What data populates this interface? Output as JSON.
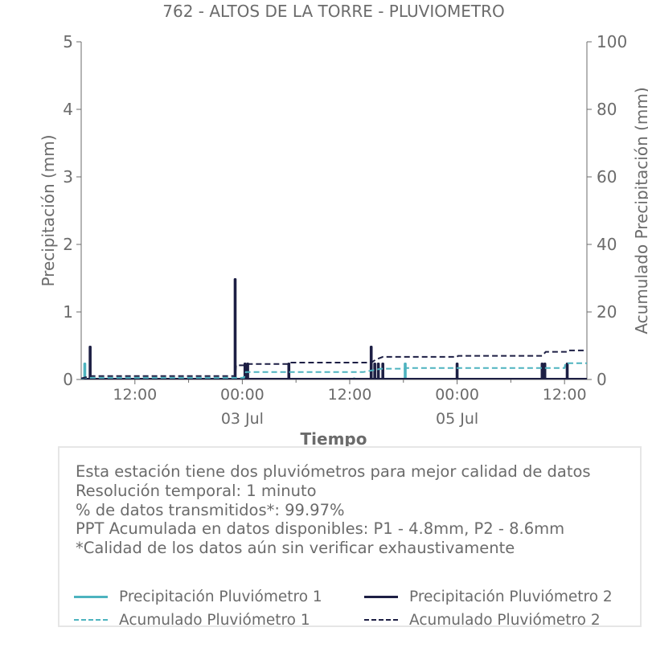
{
  "chart_data": {
    "type": "bar",
    "title": "762 - ALTOS DE LA TORRE - PLUVIOMETRO",
    "xlabel": "Tiempo",
    "ylabel": "Precipitación (mm)",
    "y2label": "Acumulado Precipitación (mm)",
    "ylim": [
      0,
      5
    ],
    "y2lim": [
      0,
      100
    ],
    "yticks": [
      "0",
      "1",
      "2",
      "3",
      "4",
      "5"
    ],
    "y2ticks": [
      "0",
      "20",
      "40",
      "60",
      "80",
      "100"
    ],
    "xlim_hours": [
      6.0,
      62.5
    ],
    "xticks": [
      {
        "hour": 12,
        "label": "12:00",
        "sublabel": ""
      },
      {
        "hour": 24,
        "label": "00:00",
        "sublabel": "03 Jul"
      },
      {
        "hour": 36,
        "label": "12:00",
        "sublabel": ""
      },
      {
        "hour": 48,
        "label": "00:00",
        "sublabel": "05 Jul"
      },
      {
        "hour": 60,
        "label": "12:00",
        "sublabel": ""
      }
    ],
    "grid": false,
    "colors": {
      "p1": "#4db3bf",
      "p2": "#1d1f44",
      "axis": "#6b6b6b"
    },
    "series": [
      {
        "name": "Precipitación Pluviómetro 1",
        "kind": "bar",
        "axis": "left",
        "points": [
          [
            6.4,
            0.25
          ],
          [
            24.2,
            0.05
          ],
          [
            36.5,
            0.03
          ],
          [
            42.2,
            0.25
          ],
          [
            51.3,
            0.02
          ],
          [
            60.0,
            0.02
          ]
        ]
      },
      {
        "name": "Precipitación Pluviómetro 2",
        "kind": "bar",
        "axis": "left",
        "points": [
          [
            7.0,
            0.5
          ],
          [
            23.2,
            1.5
          ],
          [
            24.3,
            0.25
          ],
          [
            24.6,
            0.25
          ],
          [
            29.2,
            0.25
          ],
          [
            38.4,
            0.5
          ],
          [
            38.8,
            0.25
          ],
          [
            39.2,
            0.25
          ],
          [
            39.7,
            0.25
          ],
          [
            48.0,
            0.25
          ],
          [
            57.5,
            0.25
          ],
          [
            57.8,
            0.25
          ],
          [
            60.3,
            0.25
          ]
        ]
      },
      {
        "name": "Acumulado Pluviómetro 1",
        "kind": "line",
        "axis": "right",
        "points": [
          [
            6.0,
            0.2
          ],
          [
            6.4,
            0.5
          ],
          [
            24.2,
            0.5
          ],
          [
            24.4,
            2.2
          ],
          [
            37.5,
            2.2
          ],
          [
            39.5,
            3.2
          ],
          [
            42.2,
            3.2
          ],
          [
            42.3,
            3.4
          ],
          [
            60.0,
            3.4
          ],
          [
            60.1,
            4.8
          ],
          [
            62.5,
            4.8
          ]
        ]
      },
      {
        "name": "Acumulado Pluviómetro 2",
        "kind": "line",
        "axis": "right",
        "points": [
          [
            6.0,
            0.3
          ],
          [
            7.0,
            1.0
          ],
          [
            23.2,
            1.0
          ],
          [
            23.3,
            4.2
          ],
          [
            24.6,
            4.2
          ],
          [
            24.7,
            4.6
          ],
          [
            29.2,
            4.6
          ],
          [
            29.3,
            5.0
          ],
          [
            38.4,
            5.0
          ],
          [
            39.0,
            6.0
          ],
          [
            39.7,
            6.7
          ],
          [
            48.0,
            6.7
          ],
          [
            48.1,
            7.0
          ],
          [
            57.5,
            7.0
          ],
          [
            57.9,
            8.2
          ],
          [
            60.3,
            8.2
          ],
          [
            60.4,
            8.6
          ],
          [
            62.5,
            8.6
          ]
        ]
      }
    ]
  },
  "info": {
    "lines": [
      "Esta estación tiene dos pluviómetros para mejor calidad de datos",
      "Resolución temporal: 1 minuto",
      "% de datos transmitidos*: 99.97%",
      "PPT Acumulada en datos disponibles: P1 - 4.8mm, P2 - 8.6mm",
      "*Calidad de los datos aún sin verificar exhaustivamente"
    ]
  },
  "legend": {
    "items": [
      "Precipitación Pluviómetro 1",
      "Precipitación Pluviómetro 2",
      "Acumulado Pluviómetro 1",
      "Acumulado Pluviómetro 2"
    ]
  }
}
